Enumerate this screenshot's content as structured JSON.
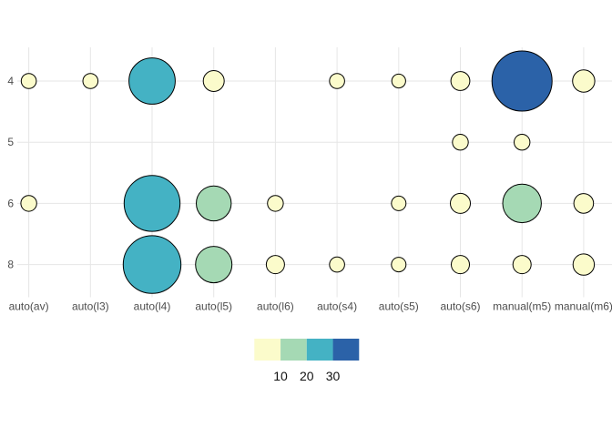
{
  "window": {
    "background": "#FFFFFF"
  },
  "chart_data": {
    "type": "scatter",
    "subtype": "count-bubble",
    "title": "",
    "xlabel": "",
    "ylabel": "",
    "grid": true,
    "x_categories": [
      "auto(av)",
      "auto(l3)",
      "auto(l4)",
      "auto(l5)",
      "auto(l6)",
      "auto(s4)",
      "auto(s5)",
      "auto(s6)",
      "manual(m5)",
      "manual(m6)"
    ],
    "y_categories": [
      "4",
      "5",
      "6",
      "8"
    ],
    "points": [
      {
        "x": "auto(av)",
        "y": "4",
        "count": 2,
        "r": 8.3,
        "bin": "yellow"
      },
      {
        "x": "auto(l3)",
        "y": "4",
        "count": 2,
        "r": 8.3,
        "bin": "yellow"
      },
      {
        "x": "auto(l4)",
        "y": "4",
        "count": 23,
        "r": 25.4,
        "bin": "teal"
      },
      {
        "x": "auto(l5)",
        "y": "4",
        "count": 5,
        "r": 11.5,
        "bin": "yellow"
      },
      {
        "x": "auto(s4)",
        "y": "4",
        "count": 2,
        "r": 8.3,
        "bin": "yellow"
      },
      {
        "x": "auto(s5)",
        "y": "4",
        "count": 1,
        "r": 7.6,
        "bin": "yellow"
      },
      {
        "x": "auto(s6)",
        "y": "4",
        "count": 3,
        "r": 10.4,
        "bin": "yellow"
      },
      {
        "x": "manual(m5)",
        "y": "4",
        "count": 34,
        "r": 33,
        "bin": "blue"
      },
      {
        "x": "manual(m6)",
        "y": "4",
        "count": 6,
        "r": 12.2,
        "bin": "yellow"
      },
      {
        "x": "auto(s6)",
        "y": "5",
        "count": 2,
        "r": 8.7,
        "bin": "yellow"
      },
      {
        "x": "manual(m5)",
        "y": "5",
        "count": 2,
        "r": 8.7,
        "bin": "yellow"
      },
      {
        "x": "auto(av)",
        "y": "6",
        "count": 2,
        "r": 8.7,
        "bin": "yellow"
      },
      {
        "x": "auto(l4)",
        "y": "6",
        "count": 29,
        "r": 30.7,
        "bin": "teal"
      },
      {
        "x": "auto(l5)",
        "y": "6",
        "count": 12,
        "r": 19.2,
        "bin": "green"
      },
      {
        "x": "auto(l6)",
        "y": "6",
        "count": 2,
        "r": 8.7,
        "bin": "yellow"
      },
      {
        "x": "auto(s5)",
        "y": "6",
        "count": 1,
        "r": 8,
        "bin": "yellow"
      },
      {
        "x": "auto(s6)",
        "y": "6",
        "count": 4,
        "r": 11,
        "bin": "yellow"
      },
      {
        "x": "manual(m5)",
        "y": "6",
        "count": 14,
        "r": 21.2,
        "bin": "green"
      },
      {
        "x": "manual(m6)",
        "y": "6",
        "count": 4,
        "r": 10.8,
        "bin": "yellow"
      },
      {
        "x": "auto(l4)",
        "y": "8",
        "count": 30,
        "r": 31.7,
        "bin": "teal"
      },
      {
        "x": "auto(l5)",
        "y": "8",
        "count": 13,
        "r": 20,
        "bin": "green"
      },
      {
        "x": "auto(l6)",
        "y": "8",
        "count": 3,
        "r": 10,
        "bin": "yellow"
      },
      {
        "x": "auto(s4)",
        "y": "8",
        "count": 2,
        "r": 8.3,
        "bin": "yellow"
      },
      {
        "x": "auto(s5)",
        "y": "8",
        "count": 1,
        "r": 8,
        "bin": "yellow"
      },
      {
        "x": "auto(s6)",
        "y": "8",
        "count": 3,
        "r": 10,
        "bin": "yellow"
      },
      {
        "x": "manual(m5)",
        "y": "8",
        "count": 3,
        "r": 10,
        "bin": "yellow"
      },
      {
        "x": "manual(m6)",
        "y": "8",
        "count": 5,
        "r": 11.7,
        "bin": "yellow"
      }
    ],
    "legend": {
      "position": "bottom",
      "breaks": [
        "10",
        "20",
        "30"
      ],
      "bins": [
        "yellow",
        "green",
        "teal",
        "blue"
      ]
    },
    "palette": {
      "yellow": "#FBFBCB",
      "green": "#A5D9B4",
      "teal": "#44B2C4",
      "blue": "#2B62A8"
    },
    "colors": {
      "background": "#FFFFFF",
      "grid": "#E6E6E6",
      "axis_text": "#4D4D4D",
      "legend_text": "#111111",
      "bubble_stroke": "#000000"
    }
  }
}
